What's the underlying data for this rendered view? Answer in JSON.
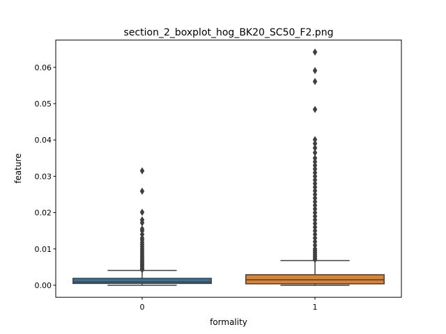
{
  "chart_data": {
    "type": "boxplot",
    "title": "section_2_boxplot_hog_BK20_SC50_F2.png",
    "xlabel": "formality",
    "ylabel": "feature",
    "categories": [
      "0",
      "1"
    ],
    "ylim": [
      -0.0033,
      0.0675
    ],
    "yticks": [
      0.0,
      0.01,
      0.02,
      0.03,
      0.04,
      0.05,
      0.06
    ],
    "ytick_labels": [
      "0.00",
      "0.01",
      "0.02",
      "0.03",
      "0.04",
      "0.05",
      "0.06"
    ],
    "grid": false,
    "legend": "none",
    "colors": {
      "0": "#3274a1",
      "1": "#e1812c",
      "outline": "#3f3f3f"
    },
    "boxes": [
      {
        "category": "0",
        "min": 0.0,
        "q1": 0.0005,
        "median": 0.0009,
        "q3": 0.0019,
        "whisker_high": 0.0041,
        "outliers": [
          0.0315,
          0.0259,
          0.0201,
          0.018,
          0.0172,
          0.0155,
          0.015,
          0.014,
          0.013,
          0.0125,
          0.0118,
          0.0112,
          0.0106,
          0.01,
          0.0095,
          0.009,
          0.0085,
          0.008,
          0.0075,
          0.007,
          0.0066,
          0.0062,
          0.0058,
          0.0054,
          0.005,
          0.0046,
          0.0043
        ]
      },
      {
        "category": "1",
        "min": 0.0,
        "q1": 0.0004,
        "median": 0.0015,
        "q3": 0.0029,
        "whisker_high": 0.0068,
        "outliers": [
          0.0642,
          0.0591,
          0.0561,
          0.0484,
          0.0401,
          0.039,
          0.0378,
          0.0365,
          0.035,
          0.034,
          0.033,
          0.032,
          0.031,
          0.03,
          0.029,
          0.028,
          0.027,
          0.026,
          0.025,
          0.024,
          0.023,
          0.022,
          0.021,
          0.02,
          0.019,
          0.018,
          0.017,
          0.016,
          0.015,
          0.014,
          0.013,
          0.012,
          0.011,
          0.01,
          0.0095,
          0.009,
          0.0085,
          0.008,
          0.0075,
          0.0071
        ]
      }
    ]
  }
}
